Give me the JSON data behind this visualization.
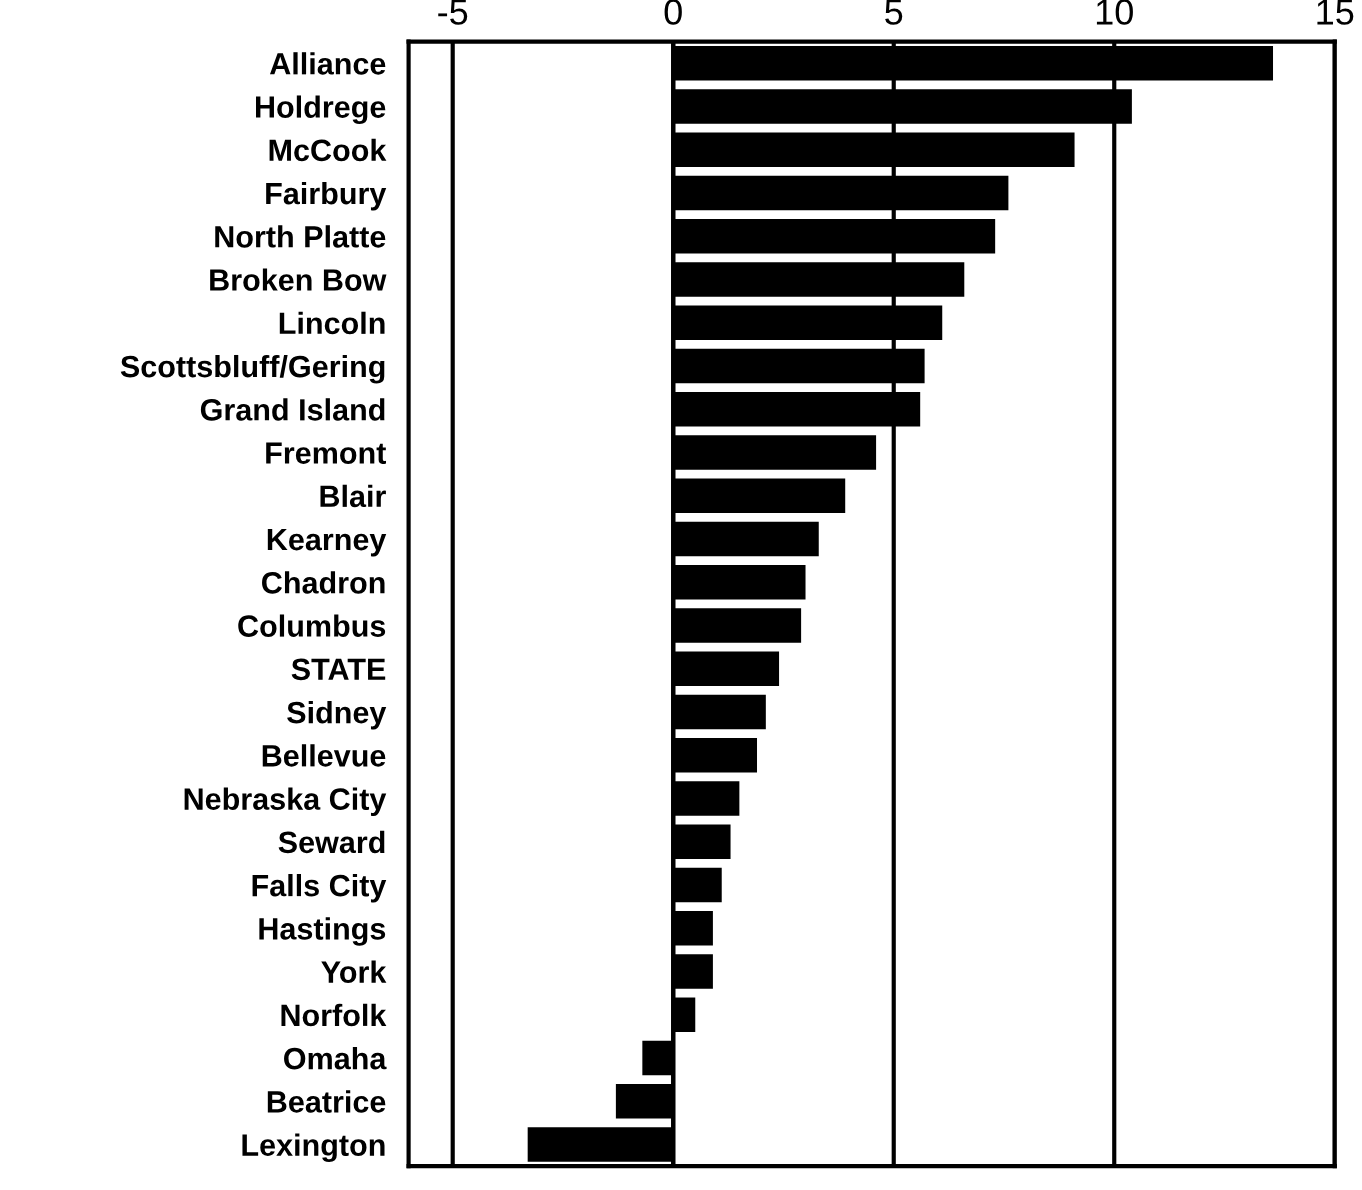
{
  "chart_data": {
    "type": "bar",
    "orientation": "horizontal",
    "categories": [
      "Alliance",
      "Holdrege",
      "McCook",
      "Fairbury",
      "North Platte",
      "Broken Bow",
      "Lincoln",
      "Scottsbluff/Gering",
      "Grand Island",
      "Fremont",
      "Blair",
      "Kearney",
      "Chadron",
      "Columbus",
      "STATE",
      "Sidney",
      "Bellevue",
      "Nebraska City",
      "Seward",
      "Falls City",
      "Hastings",
      "York",
      "Norfolk",
      "Omaha",
      "Beatrice",
      "Lexington"
    ],
    "values": [
      13.6,
      10.4,
      9.1,
      7.6,
      7.3,
      6.6,
      6.1,
      5.7,
      5.6,
      4.6,
      3.9,
      3.3,
      3.0,
      2.9,
      2.4,
      2.1,
      1.9,
      1.5,
      1.3,
      1.1,
      0.9,
      0.9,
      0.5,
      -0.7,
      -1.3,
      -3.3
    ],
    "color": "#000000",
    "xlim": [
      -6,
      15
    ],
    "xticks": [
      -5,
      0,
      5,
      10,
      15
    ],
    "grid": "x"
  }
}
